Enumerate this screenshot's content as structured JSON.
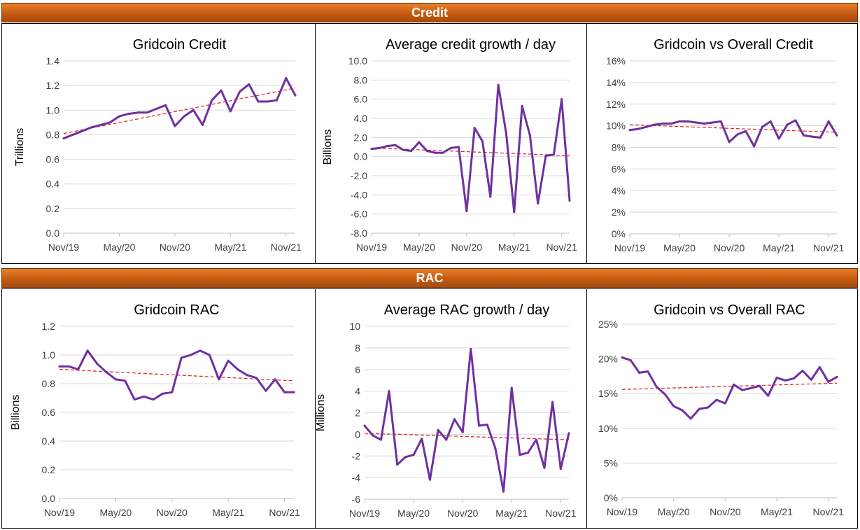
{
  "sections": {
    "credit_label": "Credit",
    "rac_label": "RAC"
  },
  "colors": {
    "banner": "#c55a11",
    "series": "#7030a0",
    "trend": "#e02020"
  },
  "chart_data": [
    {
      "type": "line",
      "title": "Gridcoin Credit",
      "ylabel": "Trillions",
      "ylim": [
        0,
        1.4
      ],
      "yticks": [
        "0.0",
        "0.2",
        "0.4",
        "0.6",
        "0.8",
        "1.0",
        "1.2",
        "1.4"
      ],
      "xlim": [
        0,
        25
      ],
      "xticks": [
        {
          "at": 0,
          "label": "Nov/19"
        },
        {
          "at": 6,
          "label": "May/20"
        },
        {
          "at": 12,
          "label": "Nov/20"
        },
        {
          "at": 18,
          "label": "May/21"
        },
        {
          "at": 24,
          "label": "Nov/21"
        }
      ],
      "x": [
        0,
        1,
        2,
        3,
        4,
        5,
        6,
        7,
        8,
        9,
        10,
        11,
        12,
        13,
        14,
        15,
        16,
        17,
        18,
        19,
        20,
        21,
        22,
        23,
        24,
        25
      ],
      "values": [
        0.77,
        0.8,
        0.83,
        0.86,
        0.88,
        0.9,
        0.95,
        0.97,
        0.98,
        0.98,
        1.01,
        1.04,
        0.87,
        0.95,
        1.0,
        0.88,
        1.08,
        1.16,
        0.99,
        1.15,
        1.21,
        1.07,
        1.07,
        1.08,
        1.26,
        1.12
      ],
      "trend": [
        0.81,
        1.18
      ]
    },
    {
      "type": "line",
      "title": "Average credit growth / day",
      "ylabel": "Billions",
      "ylim": [
        -8,
        10
      ],
      "yticks": [
        "-8.0",
        "-6.0",
        "-4.0",
        "-2.0",
        "0.0",
        "2.0",
        "4.0",
        "6.0",
        "8.0",
        "10.0"
      ],
      "xlim": [
        0,
        25
      ],
      "xticks": [
        {
          "at": 0,
          "label": "Nov/19"
        },
        {
          "at": 6,
          "label": "May/20"
        },
        {
          "at": 12,
          "label": "Nov/20"
        },
        {
          "at": 18,
          "label": "May/21"
        },
        {
          "at": 24,
          "label": "Nov/21"
        }
      ],
      "x": [
        0,
        1,
        2,
        3,
        4,
        5,
        6,
        7,
        8,
        9,
        10,
        11,
        12,
        13,
        14,
        15,
        16,
        17,
        18,
        19,
        20,
        21,
        22,
        23,
        24,
        25
      ],
      "values": [
        0.8,
        0.9,
        1.1,
        1.2,
        0.7,
        0.6,
        1.5,
        0.6,
        0.4,
        0.4,
        0.9,
        1.0,
        -5.7,
        3.0,
        1.6,
        -4.2,
        7.5,
        2.4,
        -5.8,
        5.3,
        2.2,
        -4.9,
        0.1,
        0.2,
        6.0,
        -4.6
      ],
      "trend": [
        0.9,
        0.1
      ]
    },
    {
      "type": "line",
      "title": "Gridcoin vs Overall Credit",
      "ylim": [
        0,
        16
      ],
      "yticks": [
        "0%",
        "2%",
        "4%",
        "6%",
        "8%",
        "10%",
        "12%",
        "14%",
        "16%"
      ],
      "xlim": [
        0,
        25
      ],
      "xticks": [
        {
          "at": 0,
          "label": "Nov/19"
        },
        {
          "at": 6,
          "label": "May/20"
        },
        {
          "at": 12,
          "label": "Nov/20"
        },
        {
          "at": 18,
          "label": "May/21"
        },
        {
          "at": 24,
          "label": "Nov/21"
        }
      ],
      "x": [
        0,
        1,
        2,
        3,
        4,
        5,
        6,
        7,
        8,
        9,
        10,
        11,
        12,
        13,
        14,
        15,
        16,
        17,
        18,
        19,
        20,
        21,
        22,
        23,
        24,
        25
      ],
      "values": [
        9.6,
        9.7,
        9.9,
        10.1,
        10.2,
        10.2,
        10.4,
        10.4,
        10.3,
        10.2,
        10.3,
        10.4,
        8.5,
        9.2,
        9.5,
        8.1,
        9.9,
        10.4,
        8.8,
        10.1,
        10.5,
        9.1,
        9.0,
        8.9,
        10.4,
        9.1
      ],
      "trend": [
        10.1,
        9.4
      ]
    },
    {
      "type": "line",
      "title": "Gridcoin RAC",
      "ylabel": "Billions",
      "ylim": [
        0,
        1.2
      ],
      "yticks": [
        "0.0",
        "0.2",
        "0.4",
        "0.6",
        "0.8",
        "1.0",
        "1.2"
      ],
      "xlim": [
        0,
        25
      ],
      "xticks": [
        {
          "at": 0,
          "label": "Nov/19"
        },
        {
          "at": 6,
          "label": "May/20"
        },
        {
          "at": 12,
          "label": "Nov/20"
        },
        {
          "at": 18,
          "label": "May/21"
        },
        {
          "at": 24,
          "label": "Nov/21"
        }
      ],
      "x": [
        0,
        1,
        2,
        3,
        4,
        5,
        6,
        7,
        8,
        9,
        10,
        11,
        12,
        13,
        14,
        15,
        16,
        17,
        18,
        19,
        20,
        21,
        22,
        23,
        24,
        25
      ],
      "values": [
        0.92,
        0.92,
        0.9,
        1.03,
        0.94,
        0.88,
        0.83,
        0.82,
        0.69,
        0.71,
        0.69,
        0.73,
        0.74,
        0.98,
        1.0,
        1.03,
        1.0,
        0.83,
        0.96,
        0.9,
        0.86,
        0.84,
        0.75,
        0.83,
        0.74,
        0.74
      ],
      "trend": [
        0.9,
        0.82
      ]
    },
    {
      "type": "line",
      "title": "Average RAC growth / day",
      "ylabel": "Millions",
      "ylim": [
        -6,
        10
      ],
      "yticks": [
        "-6",
        "-4",
        "-2",
        "0",
        "2",
        "4",
        "6",
        "8",
        "10"
      ],
      "xlim": [
        0,
        25
      ],
      "xticks": [
        {
          "at": 0,
          "label": "Nov/19"
        },
        {
          "at": 6,
          "label": "May/20"
        },
        {
          "at": 12,
          "label": "Nov/20"
        },
        {
          "at": 18,
          "label": "May/21"
        },
        {
          "at": 24,
          "label": "Nov/21"
        }
      ],
      "x": [
        0,
        1,
        2,
        3,
        4,
        5,
        6,
        7,
        8,
        9,
        10,
        11,
        12,
        13,
        14,
        15,
        16,
        17,
        18,
        19,
        20,
        21,
        22,
        23,
        24,
        25
      ],
      "values": [
        0.8,
        -0.1,
        -0.5,
        4.0,
        -2.8,
        -2.1,
        -1.9,
        -0.4,
        -4.2,
        0.4,
        -0.5,
        1.4,
        0.2,
        7.9,
        0.8,
        0.9,
        -1.3,
        -5.3,
        4.3,
        -1.9,
        -1.7,
        -0.5,
        -3.1,
        3.0,
        -3.2,
        0.1
      ],
      "trend": [
        0.1,
        -0.5
      ]
    },
    {
      "type": "line",
      "title": "Gridcoin vs Overall RAC",
      "ylim": [
        0,
        25
      ],
      "yticks": [
        "0%",
        "5%",
        "10%",
        "15%",
        "20%",
        "25%"
      ],
      "xlim": [
        0,
        25
      ],
      "xticks": [
        {
          "at": 0,
          "label": "Nov/19"
        },
        {
          "at": 6,
          "label": "May/20"
        },
        {
          "at": 12,
          "label": "Nov/20"
        },
        {
          "at": 18,
          "label": "May/21"
        },
        {
          "at": 24,
          "label": "Nov/21"
        }
      ],
      "x": [
        0,
        1,
        2,
        3,
        4,
        5,
        6,
        7,
        8,
        9,
        10,
        11,
        12,
        13,
        14,
        15,
        16,
        17,
        18,
        19,
        20,
        21,
        22,
        23,
        24,
        25
      ],
      "values": [
        20.2,
        19.8,
        18.0,
        18.2,
        16.0,
        14.9,
        13.2,
        12.6,
        11.4,
        12.8,
        13.0,
        14.1,
        13.6,
        16.3,
        15.5,
        15.8,
        16.1,
        14.7,
        17.3,
        16.9,
        17.2,
        18.3,
        17.0,
        18.8,
        16.7,
        17.4
      ],
      "trend": [
        15.6,
        16.5
      ]
    }
  ]
}
